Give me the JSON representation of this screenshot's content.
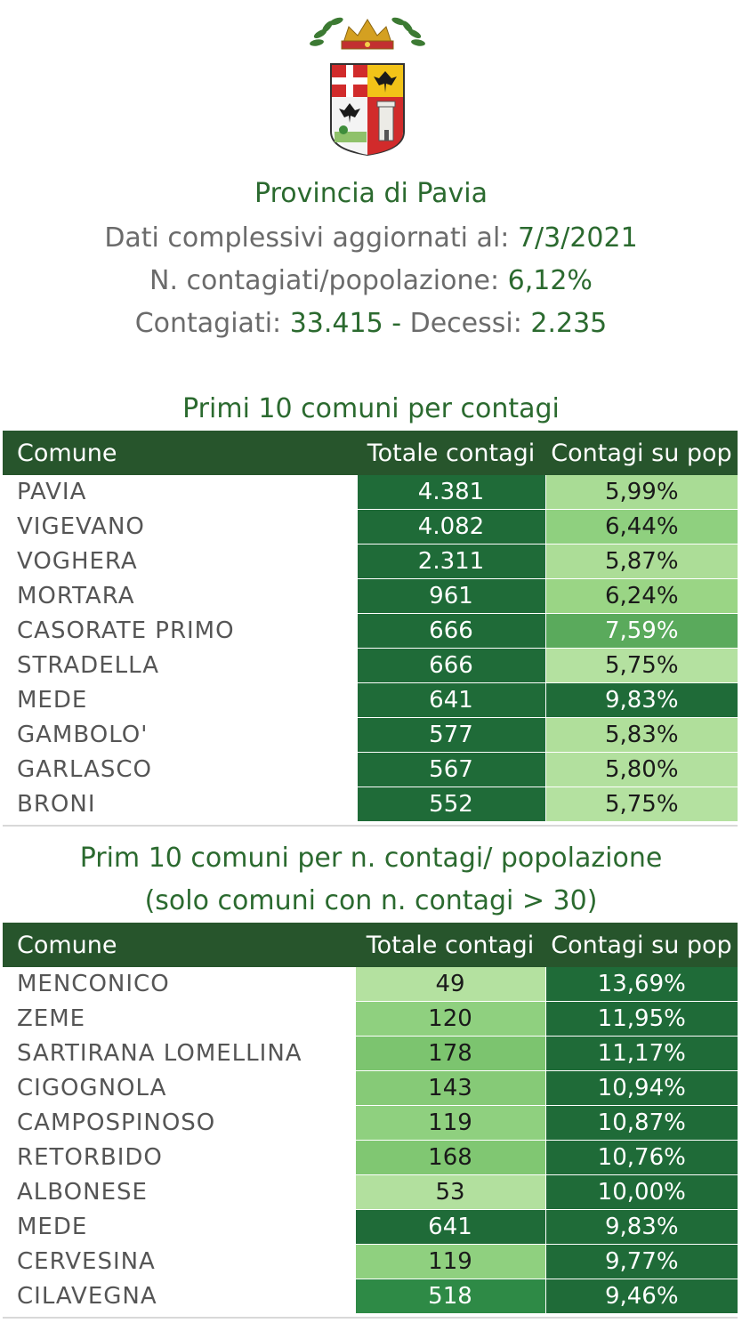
{
  "header": {
    "title": "Provincia di Pavia",
    "update_label": "Dati complessivi aggiornati al:",
    "update_date": "7/3/2021",
    "ratio_label": "N. contagiati/popolazione:",
    "ratio_value": "6,12%",
    "infected_label": "Contagiati:",
    "infected_value": "33.415",
    "separator": "-",
    "deaths_label": "Decessi:",
    "deaths_value": "2.235"
  },
  "table1": {
    "title": "Primi 10 comuni per contagi",
    "columns": [
      "Comune",
      "Totale contagi",
      "Contagi su pop"
    ],
    "rows": [
      {
        "comune": "PAVIA",
        "totale": "4.381",
        "pop": "5,99%",
        "c_tot": "#1f6b38",
        "c_pop": "#a9dc95"
      },
      {
        "comune": "VIGEVANO",
        "totale": "4.082",
        "pop": "6,44%",
        "c_tot": "#1f6b38",
        "c_pop": "#8fd07f"
      },
      {
        "comune": "VOGHERA",
        "totale": "2.311",
        "pop": "5,87%",
        "c_tot": "#1f6b38",
        "c_pop": "#acdd97"
      },
      {
        "comune": "MORTARA",
        "totale": "961",
        "pop": "6,24%",
        "c_tot": "#1f6b38",
        "c_pop": "#9ad585"
      },
      {
        "comune": "CASORATE PRIMO",
        "totale": "666",
        "pop": "7,59%",
        "c_tot": "#1f6b38",
        "c_pop": "#5aaa5c"
      },
      {
        "comune": "STRADELLA",
        "totale": "666",
        "pop": "5,75%",
        "c_tot": "#1f6b38",
        "c_pop": "#b4e1a0"
      },
      {
        "comune": "MEDE",
        "totale": "641",
        "pop": "9,83%",
        "c_tot": "#1f6b38",
        "c_pop": "#1f6b38"
      },
      {
        "comune": "GAMBOLO'",
        "totale": "577",
        "pop": "5,83%",
        "c_tot": "#1f6b38",
        "c_pop": "#b0df9b"
      },
      {
        "comune": "GARLASCO",
        "totale": "567",
        "pop": "5,80%",
        "c_tot": "#1f6b38",
        "c_pop": "#b2e09e"
      },
      {
        "comune": "BRONI",
        "totale": "552",
        "pop": "5,75%",
        "c_tot": "#1f6b38",
        "c_pop": "#b4e1a0"
      }
    ]
  },
  "table2": {
    "title_line1": "Prim 10 comuni per n. contagi/ popolazione",
    "title_line2": "(solo comuni con n. contagi > 30)",
    "columns": [
      "Comune",
      "Totale contagi",
      "Contagi su pop"
    ],
    "rows": [
      {
        "comune": "MENCONICO",
        "totale": "49",
        "pop": "13,69%",
        "c_tot": "#b4e1a0",
        "c_pop": "#1f6b38"
      },
      {
        "comune": "ZEME",
        "totale": "120",
        "pop": "11,95%",
        "c_tot": "#8fd07f",
        "c_pop": "#1f6b38"
      },
      {
        "comune": "SARTIRANA LOMELLINA",
        "totale": "178",
        "pop": "11,17%",
        "c_tot": "#7cc46f",
        "c_pop": "#1f6b38"
      },
      {
        "comune": "CIGOGNOLA",
        "totale": "143",
        "pop": "10,94%",
        "c_tot": "#86ca77",
        "c_pop": "#1f6b38"
      },
      {
        "comune": "CAMPOSPINOSO",
        "totale": "119",
        "pop": "10,87%",
        "c_tot": "#8fd07f",
        "c_pop": "#1f6b38"
      },
      {
        "comune": "RETORBIDO",
        "totale": "168",
        "pop": "10,76%",
        "c_tot": "#80c772",
        "c_pop": "#1f6b38"
      },
      {
        "comune": "ALBONESE",
        "totale": "53",
        "pop": "10,00%",
        "c_tot": "#b2e09e",
        "c_pop": "#1f6b38"
      },
      {
        "comune": "MEDE",
        "totale": "641",
        "pop": "9,83%",
        "c_tot": "#1f6b38",
        "c_pop": "#1f6b38"
      },
      {
        "comune": "CERVESINA",
        "totale": "119",
        "pop": "9,77%",
        "c_tot": "#8fd07f",
        "c_pop": "#1f6b38"
      },
      {
        "comune": "CILAVEGNA",
        "totale": "518",
        "pop": "9,46%",
        "c_tot": "#2e8a46",
        "c_pop": "#1f6b38"
      }
    ]
  },
  "colors": {
    "title_green": "#2b6a2f",
    "header_bg": "#27552c",
    "dark_cell": "#1f6b38"
  },
  "icons": {
    "emblem": "coat-of-arms-of-province-of-pavia"
  }
}
